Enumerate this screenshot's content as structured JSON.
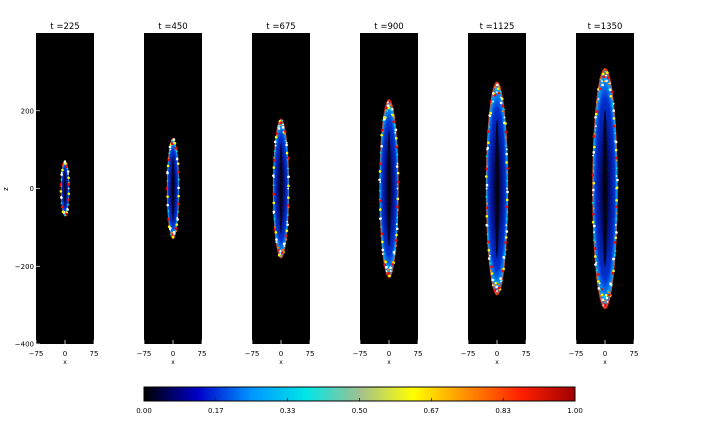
{
  "chart_data": {
    "type": "heatmap",
    "panels": [
      {
        "title": "t =225",
        "z_half_extent": 72,
        "x_half_width": 11
      },
      {
        "title": "t =450",
        "z_half_extent": 130,
        "x_half_width": 16
      },
      {
        "title": "t =675",
        "z_half_extent": 180,
        "x_half_width": 21
      },
      {
        "title": "t =900",
        "z_half_extent": 230,
        "x_half_width": 25
      },
      {
        "title": "t =1125",
        "z_half_extent": 275,
        "x_half_width": 29
      },
      {
        "title": "t =1350",
        "z_half_extent": 310,
        "x_half_width": 33
      }
    ],
    "xlabel": "x",
    "ylabel": "z",
    "xlim": [
      -75,
      75
    ],
    "ylim": [
      -400,
      400
    ],
    "x_ticks": [
      "−75",
      "0",
      "75"
    ],
    "y_ticks": [
      {
        "value": 200,
        "label": "200"
      },
      {
        "value": 0,
        "label": "0"
      },
      {
        "value": -200,
        "label": "−200"
      },
      {
        "value": -400,
        "label": "−400"
      }
    ],
    "colorbar": {
      "min": 0,
      "max": 1,
      "tick_labels": [
        "0.00",
        "0.17",
        "0.33",
        "0.50",
        "0.67",
        "0.83",
        "1.00"
      ],
      "colors": [
        "#000000",
        "#0000c8",
        "#0096ff",
        "#00e6e6",
        "#a0c090",
        "#ffff00",
        "#ff8c00",
        "#ff2000",
        "#a00000"
      ]
    },
    "background_color": "#000000"
  }
}
